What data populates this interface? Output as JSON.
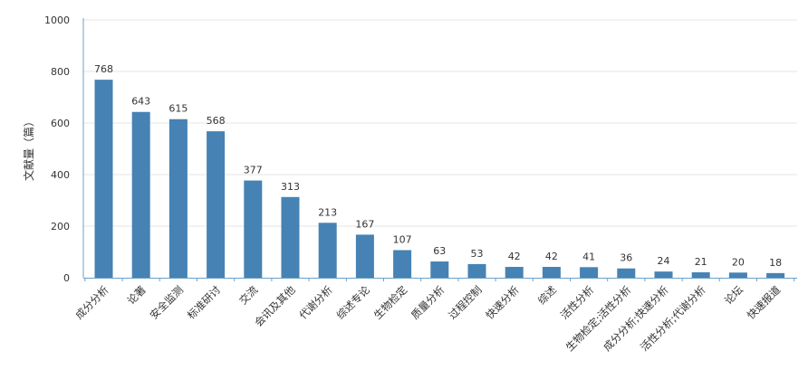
{
  "chart_data": {
    "type": "bar",
    "title": "",
    "xlabel": "",
    "ylabel": "文献量（篇）",
    "ylim": [
      0,
      1000
    ],
    "yticks": [
      0,
      200,
      400,
      600,
      800,
      1000
    ],
    "grid": true,
    "legend": "none",
    "categories": [
      "成分分析",
      "论著",
      "安全监测",
      "标准研讨",
      "交流",
      "会讯及其他",
      "代谢分析",
      "综述专论",
      "生物检定",
      "质量分析",
      "过程控制",
      "快速分析",
      "综述",
      "活性分析",
      "生物检定;活性分析",
      "成分分析;快速分析",
      "活性分析;代谢分析",
      "论坛",
      "快速报道"
    ],
    "values": [
      768,
      643,
      615,
      568,
      377,
      313,
      213,
      167,
      107,
      63,
      53,
      42,
      42,
      41,
      36,
      24,
      21,
      20,
      18
    ]
  },
  "colors": {
    "bar": "#4682b4",
    "axis": "#6aa0c8",
    "grid": "#e6e6e6",
    "text": "#333333"
  }
}
